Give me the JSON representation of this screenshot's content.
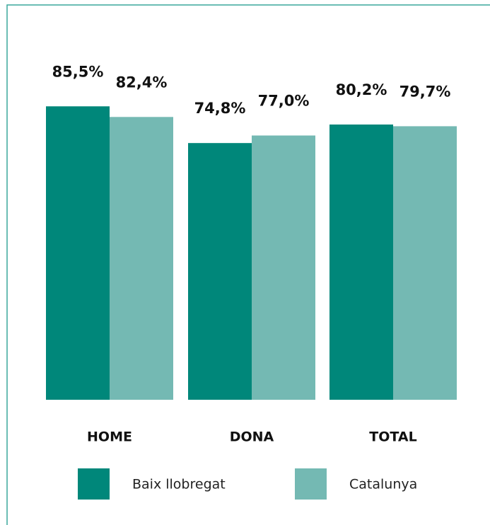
{
  "chart_data": {
    "type": "bar",
    "categories": [
      "HOME",
      "DONA",
      "TOTAL"
    ],
    "series": [
      {
        "name": "Baix llobregat",
        "color": "#00877a",
        "values": [
          85.5,
          74.8,
          80.2
        ],
        "value_labels": [
          "85,5%",
          "74,8%",
          "80,2%"
        ]
      },
      {
        "name": "Catalunya",
        "color": "#74b9b3",
        "values": [
          82.4,
          77.0,
          79.7
        ],
        "value_labels": [
          "82,4%",
          "77,0%",
          "79,7%"
        ]
      }
    ],
    "ylim": [
      0,
      87
    ]
  }
}
